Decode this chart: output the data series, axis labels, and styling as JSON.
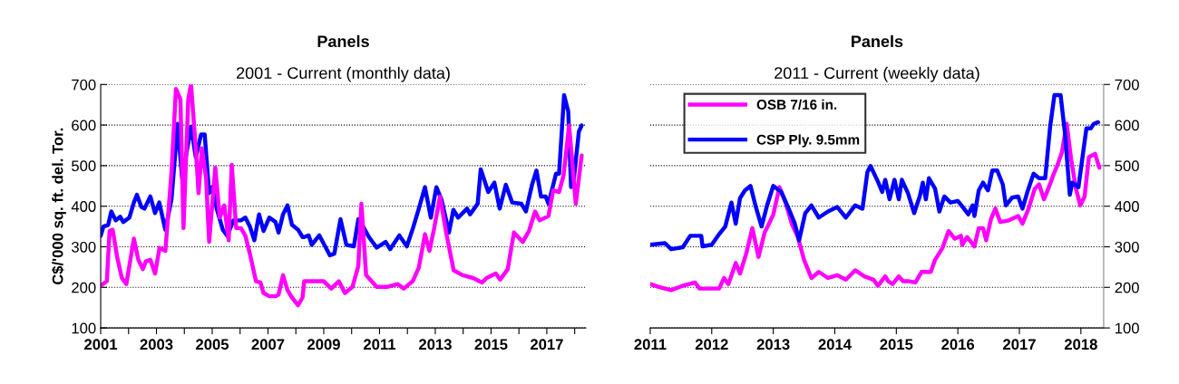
{
  "chart_data": [
    {
      "type": "line",
      "title": "Panels",
      "subtitle": "2001 - Current (monthly data)",
      "ylabel": "C$/'000 sq. ft. del. Tor.",
      "xlim": [
        2001,
        2018.4
      ],
      "ylim": [
        100,
        700
      ],
      "yticks": [
        100,
        200,
        300,
        400,
        500,
        600,
        700
      ],
      "xticks": [
        2001,
        {
          "value": 2002,
          "label": null
        },
        2003,
        {
          "value": 2004,
          "label": null
        },
        2005,
        {
          "value": 2006,
          "label": null
        },
        2007,
        {
          "value": 2008,
          "label": null
        },
        2009,
        {
          "value": 2010,
          "label": null
        },
        2011,
        {
          "value": 2012,
          "label": null
        },
        2013,
        {
          "value": 2014,
          "label": null
        },
        2015,
        {
          "value": 2016,
          "label": null
        },
        2017,
        {
          "value": 2018,
          "label": null
        }
      ],
      "grid": "y",
      "legend": false,
      "series": [
        {
          "color": "#0000ff",
          "x": [
            2001.0,
            2001.1,
            2001.27,
            2001.38,
            2001.54,
            2001.7,
            2001.81,
            2002.03,
            2002.19,
            2002.3,
            2002.46,
            2002.57,
            2002.78,
            2002.95,
            2003.1,
            2003.32,
            2003.54,
            2003.76,
            2003.92,
            2004.24,
            2004.41,
            2004.6,
            2004.73,
            2004.89,
            2005.0,
            2005.16,
            2005.38,
            2005.54,
            2005.76,
            2006.03,
            2006.19,
            2006.35,
            2006.51,
            2006.68,
            2006.84,
            2007.05,
            2007.27,
            2007.38,
            2007.54,
            2007.7,
            2007.86,
            2008.08,
            2008.24,
            2008.3,
            2008.46,
            2008.57,
            2008.84,
            2009.05,
            2009.22,
            2009.38,
            2009.6,
            2009.81,
            2010.08,
            2010.24,
            2010.41,
            2010.62,
            2010.9,
            2011.22,
            2011.38,
            2011.71,
            2011.98,
            2012.2,
            2012.41,
            2012.63,
            2012.84,
            2013.04,
            2013.22,
            2013.49,
            2013.65,
            2013.82,
            2014.14,
            2014.25,
            2014.52,
            2014.63,
            2014.9,
            2015.12,
            2015.31,
            2015.53,
            2015.76,
            2016.09,
            2016.25,
            2016.47,
            2016.63,
            2016.79,
            2016.96,
            2017.06,
            2017.33,
            2017.44,
            2017.62,
            2017.77,
            2017.87,
            2017.95,
            2018.15,
            2018.25
          ],
          "values": [
            327,
            350,
            354,
            387,
            365,
            374,
            361,
            372,
            409,
            428,
            398,
            394,
            424,
            383,
            409,
            342,
            417,
            603,
            469,
            596,
            521,
            577,
            577,
            432,
            447,
            394,
            342,
            327,
            365,
            365,
            372,
            350,
            316,
            380,
            339,
            372,
            361,
            335,
            380,
            402,
            354,
            342,
            324,
            324,
            328,
            305,
            328,
            301,
            279,
            283,
            368,
            305,
            301,
            368,
            350,
            324,
            298,
            312,
            294,
            328,
            301,
            346,
            394,
            447,
            372,
            447,
            417,
            335,
            391,
            372,
            394,
            380,
            406,
            491,
            435,
            458,
            394,
            453,
            409,
            406,
            387,
            453,
            488,
            424,
            424,
            406,
            480,
            480,
            674,
            633,
            447,
            454,
            584,
            599
          ]
        },
        {
          "color": "#ff00ff",
          "x": [
            2001.0,
            2001.22,
            2001.32,
            2001.43,
            2001.59,
            2001.76,
            2001.92,
            2002.19,
            2002.35,
            2002.51,
            2002.62,
            2002.78,
            2002.95,
            2003.11,
            2003.32,
            2003.54,
            2003.7,
            2003.86,
            2003.97,
            2004.14,
            2004.24,
            2004.41,
            2004.51,
            2004.63,
            2004.78,
            2004.89,
            2005.11,
            2005.27,
            2005.43,
            2005.59,
            2005.7,
            2005.86,
            2006.03,
            2006.19,
            2006.35,
            2006.57,
            2006.73,
            2006.84,
            2007.05,
            2007.27,
            2007.38,
            2007.54,
            2007.7,
            2007.86,
            2008.08,
            2008.24,
            2008.3,
            2008.51,
            2008.73,
            2009.0,
            2009.27,
            2009.54,
            2009.76,
            2010.03,
            2010.24,
            2010.35,
            2010.52,
            2010.9,
            2011.27,
            2011.65,
            2011.87,
            2012.19,
            2012.41,
            2012.63,
            2012.79,
            2012.95,
            2013.17,
            2013.39,
            2013.66,
            2013.98,
            2014.36,
            2014.68,
            2014.84,
            2015.17,
            2015.33,
            2015.6,
            2015.82,
            2016.14,
            2016.36,
            2016.58,
            2016.74,
            2017.06,
            2017.23,
            2017.44,
            2017.6,
            2017.8,
            2018.04,
            2018.25
          ],
          "values": [
            204,
            215,
            339,
            342,
            275,
            223,
            208,
            320,
            268,
            245,
            264,
            268,
            234,
            297,
            290,
            484,
            689,
            663,
            346,
            663,
            700,
            543,
            432,
            543,
            469,
            312,
            495,
            372,
            402,
            316,
            502,
            346,
            346,
            327,
            283,
            215,
            212,
            186,
            178,
            178,
            182,
            230,
            193,
            175,
            156,
            175,
            215,
            215,
            215,
            215,
            197,
            215,
            186,
            201,
            253,
            406,
            230,
            201,
            201,
            208,
            197,
            215,
            249,
            331,
            290,
            342,
            424,
            335,
            242,
            230,
            223,
            212,
            223,
            234,
            219,
            245,
            335,
            312,
            339,
            387,
            365,
            376,
            439,
            435,
            476,
            599,
            406,
            525
          ]
        }
      ]
    },
    {
      "type": "line",
      "title": "Panels",
      "subtitle": "2011 - Current (weekly data)",
      "xlim": [
        2011,
        2018.37
      ],
      "xticks": [
        2011,
        2012,
        2013,
        2014,
        2015,
        2016,
        2017,
        2018
      ],
      "y2lim": [
        100,
        700
      ],
      "y2ticks": [
        100,
        200,
        300,
        400,
        500,
        600,
        700
      ],
      "grid": "y",
      "legend": "top left",
      "series": [
        {
          "name": "OSB 7/16 in.",
          "color": "#ff00ff",
          "axis": "y2",
          "x": [
            2011.0,
            2011.14,
            2011.34,
            2011.53,
            2011.73,
            2011.8,
            2012.02,
            2012.12,
            2012.2,
            2012.27,
            2012.39,
            2012.46,
            2012.56,
            2012.66,
            2012.76,
            2012.86,
            2013.0,
            2013.1,
            2013.2,
            2013.3,
            2013.4,
            2013.5,
            2013.62,
            2013.74,
            2013.89,
            2014.04,
            2014.18,
            2014.33,
            2014.48,
            2014.63,
            2014.7,
            2014.82,
            2014.87,
            2014.94,
            2015.04,
            2015.11,
            2015.21,
            2015.31,
            2015.41,
            2015.56,
            2015.63,
            2015.75,
            2015.85,
            2015.95,
            2016.05,
            2016.07,
            2016.15,
            2016.27,
            2016.34,
            2016.41,
            2016.46,
            2016.54,
            2016.61,
            2016.69,
            2016.83,
            2016.98,
            2017.05,
            2017.15,
            2017.25,
            2017.32,
            2017.4,
            2017.47,
            2017.55,
            2017.62,
            2017.69,
            2017.77,
            2017.84,
            2017.92,
            2017.99,
            2018.06,
            2018.13,
            2018.23,
            2018.3
          ],
          "values": [
            208,
            201,
            193,
            204,
            212,
            197,
            197,
            197,
            223,
            208,
            260,
            234,
            283,
            346,
            275,
            335,
            379,
            447,
            409,
            357,
            324,
            268,
            223,
            238,
            223,
            230,
            219,
            242,
            227,
            219,
            204,
            227,
            215,
            208,
            227,
            215,
            215,
            212,
            238,
            238,
            268,
            297,
            339,
            320,
            327,
            305,
            324,
            301,
            346,
            346,
            316,
            369,
            394,
            361,
            365,
            376,
            357,
            394,
            443,
            454,
            417,
            443,
            476,
            502,
            532,
            603,
            517,
            443,
            402,
            424,
            521,
            529,
            495
          ]
        },
        {
          "name": "CSP Ply. 9.5mm",
          "color": "#0000ff",
          "axis": "y2",
          "x": [
            2011.0,
            2011.24,
            2011.34,
            2011.53,
            2011.65,
            2011.83,
            2011.85,
            2012.0,
            2012.12,
            2012.22,
            2012.32,
            2012.39,
            2012.46,
            2012.54,
            2012.63,
            2012.71,
            2012.81,
            2012.9,
            2013.0,
            2013.13,
            2013.25,
            2013.35,
            2013.42,
            2013.52,
            2013.62,
            2013.74,
            2013.89,
            2014.04,
            2014.18,
            2014.33,
            2014.45,
            2014.53,
            2014.58,
            2014.7,
            2014.77,
            2014.82,
            2014.89,
            2014.97,
            2015.04,
            2015.09,
            2015.19,
            2015.29,
            2015.38,
            2015.43,
            2015.48,
            2015.53,
            2015.63,
            2015.7,
            2015.78,
            2015.88,
            2016.0,
            2016.1,
            2016.17,
            2016.24,
            2016.27,
            2016.34,
            2016.41,
            2016.49,
            2016.56,
            2016.64,
            2016.73,
            2016.78,
            2016.88,
            2016.98,
            2017.05,
            2017.13,
            2017.23,
            2017.32,
            2017.42,
            2017.5,
            2017.57,
            2017.67,
            2017.74,
            2017.82,
            2017.86,
            2017.96,
            2018.09,
            2018.16,
            2018.21,
            2018.28
          ],
          "values": [
            305,
            309,
            294,
            299,
            327,
            327,
            301,
            305,
            331,
            350,
            409,
            357,
            420,
            439,
            450,
            402,
            350,
            402,
            450,
            435,
            394,
            357,
            316,
            383,
            402,
            372,
            387,
            398,
            372,
            402,
            394,
            484,
            499,
            461,
            435,
            465,
            417,
            465,
            417,
            465,
            432,
            383,
            424,
            458,
            417,
            469,
            443,
            387,
            424,
            409,
            413,
            394,
            380,
            402,
            376,
            439,
            458,
            439,
            488,
            488,
            454,
            402,
            421,
            424,
            394,
            435,
            480,
            469,
            469,
            596,
            674,
            674,
            581,
            428,
            458,
            447,
            592,
            592,
            603,
            607
          ]
        }
      ]
    }
  ]
}
